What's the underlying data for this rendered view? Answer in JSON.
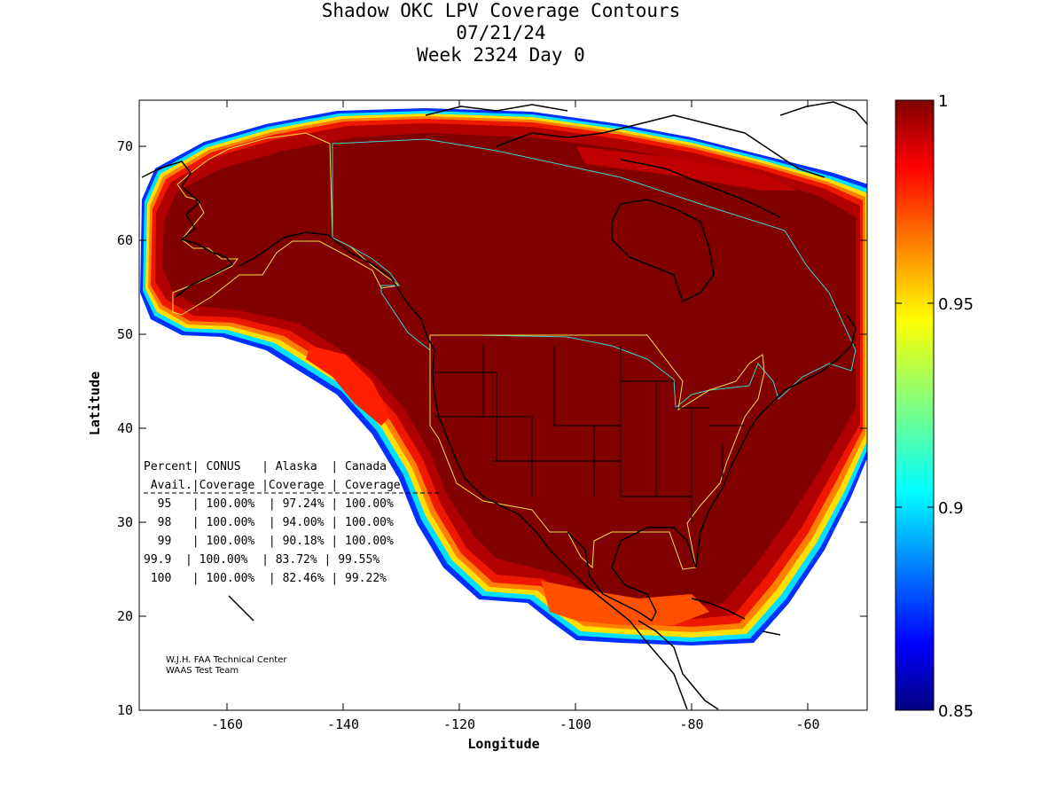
{
  "title": {
    "line1": "Shadow OKC LPV Coverage Contours",
    "line2": "07/21/24",
    "line3": "Week 2324 Day 0"
  },
  "axes": {
    "xlabel": "Longitude",
    "ylabel": "Latitude",
    "x_ticks": [
      "-160",
      "-140",
      "-120",
      "-100",
      "-80",
      "-60"
    ],
    "y_ticks": [
      "70",
      "60",
      "50",
      "40",
      "30",
      "20",
      "10"
    ],
    "xlim": [
      -175,
      -50
    ],
    "ylim": [
      10,
      75
    ]
  },
  "colorbar": {
    "ticks": [
      "1",
      "0.95",
      "0.9",
      "0.85"
    ],
    "range": [
      0.85,
      1
    ],
    "colormap": "jet"
  },
  "stats_table": {
    "header1": [
      "Percent",
      "CONUS",
      "Alaska",
      "Canada"
    ],
    "header2": [
      "Avail.",
      "Coverage",
      "Coverage",
      "Coverage"
    ],
    "rows": [
      [
        "95",
        "100.00%",
        "97.24%",
        "100.00%"
      ],
      [
        "98",
        "100.00%",
        "94.00%",
        "100.00%"
      ],
      [
        "99",
        "100.00%",
        "90.18%",
        "100.00%"
      ],
      [
        "99.9",
        "100.00%",
        "83.72%",
        "99.55%"
      ],
      [
        "100",
        "100.00%",
        "82.46%",
        "99.22%"
      ]
    ]
  },
  "credits": {
    "line1": "W.J.H. FAA Technical Center",
    "line2": "WAAS Test Team"
  },
  "colors": {
    "core": "#800000",
    "region_outline_yellow": "#f0e040",
    "region_outline_cyan": "#40d0d0"
  }
}
